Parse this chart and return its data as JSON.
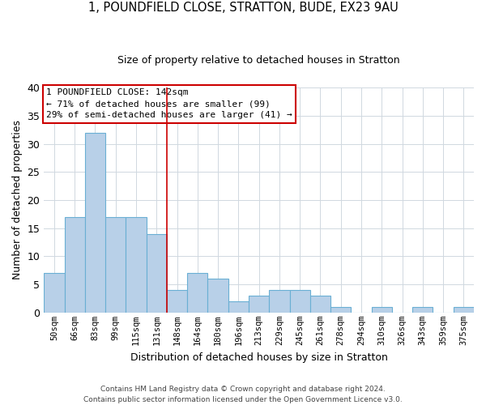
{
  "title": "1, POUNDFIELD CLOSE, STRATTON, BUDE, EX23 9AU",
  "subtitle": "Size of property relative to detached houses in Stratton",
  "xlabel": "Distribution of detached houses by size in Stratton",
  "ylabel": "Number of detached properties",
  "bin_labels": [
    "50sqm",
    "66sqm",
    "83sqm",
    "99sqm",
    "115sqm",
    "131sqm",
    "148sqm",
    "164sqm",
    "180sqm",
    "196sqm",
    "213sqm",
    "229sqm",
    "245sqm",
    "261sqm",
    "278sqm",
    "294sqm",
    "310sqm",
    "326sqm",
    "343sqm",
    "359sqm",
    "375sqm"
  ],
  "bar_values": [
    7,
    17,
    32,
    17,
    17,
    14,
    4,
    7,
    6,
    2,
    3,
    4,
    4,
    3,
    1,
    0,
    1,
    0,
    1,
    0,
    1
  ],
  "bar_color": "#b8d0e8",
  "bar_edge_color": "#6aafd4",
  "marker_line_color": "#cc0000",
  "marker_line_index": 6,
  "ylim": [
    0,
    40
  ],
  "yticks": [
    0,
    5,
    10,
    15,
    20,
    25,
    30,
    35,
    40
  ],
  "annotation_title": "1 POUNDFIELD CLOSE: 142sqm",
  "annotation_line1": "← 71% of detached houses are smaller (99)",
  "annotation_line2": "29% of semi-detached houses are larger (41) →",
  "annotation_box_color": "#ffffff",
  "annotation_box_edge": "#cc0000",
  "footer_line1": "Contains HM Land Registry data © Crown copyright and database right 2024.",
  "footer_line2": "Contains public sector information licensed under the Open Government Licence v3.0.",
  "background_color": "#ffffff",
  "grid_color": "#d0d8e0"
}
